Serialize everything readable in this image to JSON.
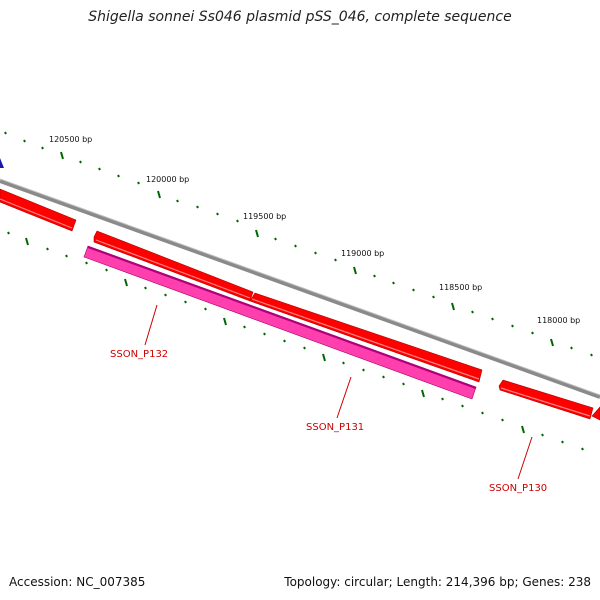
{
  "title": "Shigella sonnei Ss046 plasmid pSS_046, complete sequence",
  "accession": "Accession: NC_007385",
  "summary": "Topology: circular; Length: 214,396 bp; Genes: 238",
  "ticks": [
    "120500 bp",
    "120000 bp",
    "119500 bp",
    "119000 bp",
    "118500 bp",
    "118000 bp"
  ],
  "genes": [
    "SSON_P132",
    "SSON_P131",
    "SSON_P130"
  ],
  "colors": {
    "gene_red": "#ff0000",
    "gene_pink": "#ff3fae",
    "backbone": "#8a8a8a",
    "ticks": "#006600",
    "label": "#cc0000"
  }
}
